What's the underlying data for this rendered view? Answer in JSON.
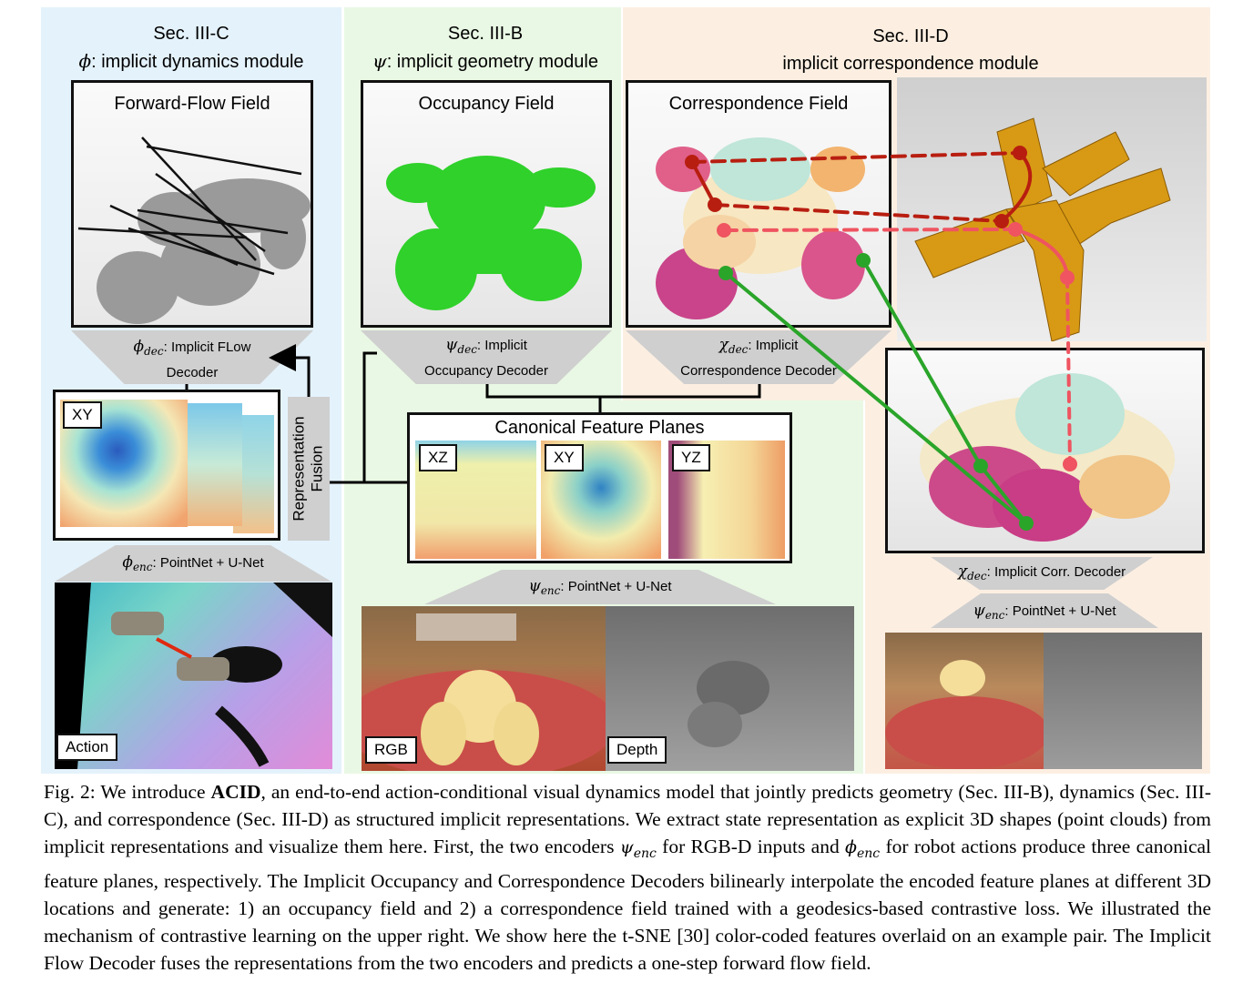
{
  "sections": {
    "dynamics": {
      "sec": "Sec. III-C",
      "symbol": "ϕ",
      "name": ": implicit dynamics module"
    },
    "geometry": {
      "sec": "Sec. III-B",
      "symbol": "ψ",
      "name": ": implicit geometry module"
    },
    "correspondence": {
      "sec": "Sec. III-D",
      "name": "implicit correspondence module"
    }
  },
  "panels": {
    "flow": "Forward-Flow Field",
    "occupancy": "Occupancy Field",
    "correspondence": "Correspondence Field",
    "feature_planes": "Canonical Feature Planes"
  },
  "decoders": {
    "flow": {
      "symbol": "ϕ",
      "sub": "dec",
      "line1": ": Implicit FLow",
      "line2": "Decoder"
    },
    "occupancy": {
      "symbol": "ψ",
      "sub": "dec",
      "line1": ": Implicit",
      "line2": "Occupancy Decoder"
    },
    "corr": {
      "symbol": "χ",
      "sub": "dec",
      "line1": ": Implicit",
      "line2": "Correspondence Decoder"
    },
    "corr_small": {
      "symbol": "χ",
      "sub": "dec",
      "line1": ": Implicit Corr. Decoder"
    }
  },
  "encoders": {
    "phi": {
      "symbol": "ϕ",
      "sub": "enc",
      "label": ": PointNet + U-Net"
    },
    "psi": {
      "symbol": "ψ",
      "sub": "enc",
      "label": ": PointNet + U-Net"
    },
    "psi_small": {
      "symbol": "ψ",
      "sub": "enc",
      "label": ": PointNet + U-Net"
    }
  },
  "fusion_label": [
    "Representation",
    "Fusion"
  ],
  "tags": {
    "xy_left": "XY",
    "xz": "XZ",
    "xy": "XY",
    "yz": "YZ",
    "action": "Action",
    "rgb": "RGB",
    "depth": "Depth"
  },
  "caption": {
    "prefix": "Fig. 2: We introduce ",
    "bold": "ACID",
    "text1": ", an end-to-end action-conditional visual dynamics model that jointly predicts geometry (Sec. III-B), dynamics (Sec. III-C), and correspondence (Sec. III-D) as structured implicit representations. We extract state representation as explicit 3D shapes (point clouds) from implicit representations and visualize them here. First, the two encoders ",
    "sym1": "ψ",
    "sub1": "enc",
    "text2": " for RGB-D inputs and ",
    "sym2": "ϕ",
    "sub2": "enc",
    "text3": " for robot actions produce three canonical feature planes, respectively. The Implicit Occupancy and Correspondence Decoders bilinearly interpolate the encoded feature planes at different 3D locations and generate: 1) an occupancy field and 2) a correspondence field trained with a geodesics-based contrastive loss. We illustrated the mechanism of contrastive learning on the upper right. We show here the t-SNE [30] color-coded features overlaid on an example pair. The Implicit Flow Decoder fuses the representations from the two encoders and predicts a one-step forward flow field."
  },
  "colors": {
    "dynamics_bg": "#e4f2fb",
    "geometry_bg": "#e9f8e4",
    "corr_bg": "#fcefe2",
    "occupancy": "#2fd12a",
    "voxel": "#d89a14",
    "match_green": "#2aa52a",
    "match_dark_red": "#b81e10",
    "match_red": "#ef5460"
  }
}
